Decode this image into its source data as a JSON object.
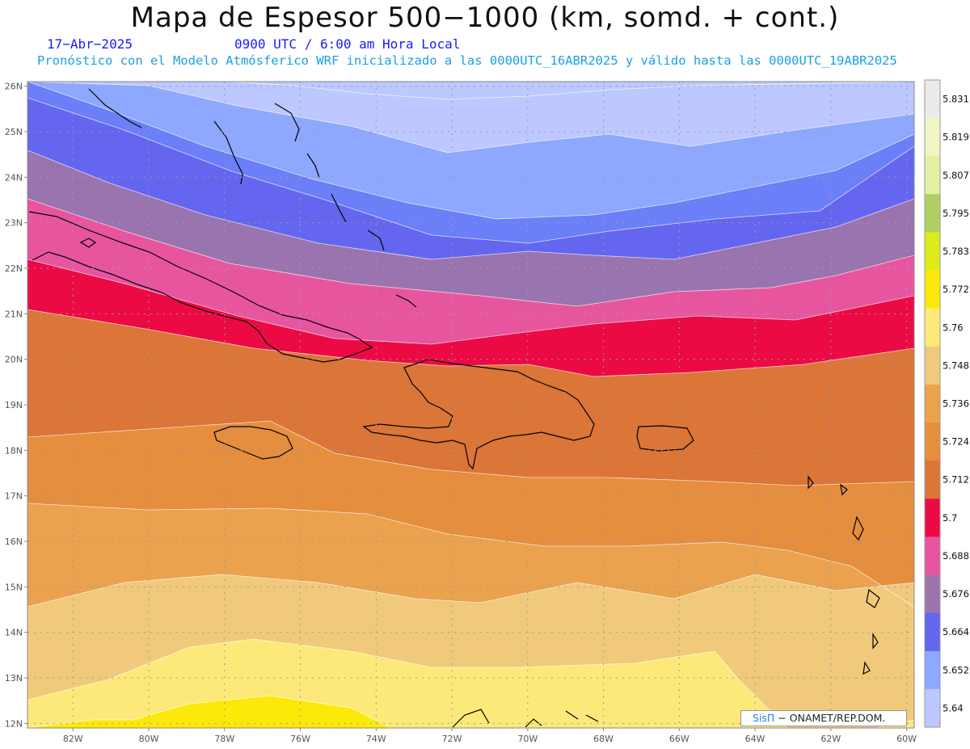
{
  "header": {
    "title": "Mapa de Espesor 500−1000 (km, somd. + cont.)",
    "date": "17−Abr−2025",
    "time": "0900 UTC / 6:00 am Hora Local",
    "forecast": "Pronóstico con el Modelo Atmósferico WRF inicializado a las 0000UTC_16ABR2025 y válido hasta las  0000UTC_19ABR2025"
  },
  "map": {
    "lon_labels": [
      "82W",
      "80W",
      "78W",
      "76W",
      "74W",
      "72W",
      "70W",
      "68W",
      "66W",
      "64W",
      "62W",
      "60W"
    ],
    "lat_labels": [
      "26N",
      "25N",
      "24N",
      "23N",
      "22N",
      "21N",
      "20N",
      "19N",
      "18N",
      "17N",
      "16N",
      "15N",
      "14N",
      "13N",
      "12N"
    ],
    "lon_range": [
      -83.2,
      -59.8
    ],
    "lat_range": [
      11.9,
      26.1
    ],
    "band_colors": [
      "#bcc8ff",
      "#8fa8ff",
      "#6a7ff8",
      "#6466f0",
      "#9a74ae",
      "#e8559f",
      "#ec0a45",
      "#db7538",
      "#e48e3e",
      "#eaa24e",
      "#f0c97a",
      "#fde979",
      "#fde909",
      "#e6e914"
    ]
  },
  "colorbar": {
    "labels": [
      "5.831",
      "5.819",
      "5.807",
      "5.795",
      "5.783",
      "5.772",
      "5.76",
      "5.748",
      "5.736",
      "5.724",
      "5.712",
      "5.7",
      "5.688",
      "5.676",
      "5.664",
      "5.652",
      "5.64"
    ],
    "colors": [
      "#ebebeb",
      "#f2f5c6",
      "#e2f0a0",
      "#b0cf62",
      "#dceb1a",
      "#fde909",
      "#fde979",
      "#f0c97a",
      "#eaa24e",
      "#e48e3e",
      "#db7538",
      "#ec0a45",
      "#e8559f",
      "#9a74ae",
      "#6466f0",
      "#8fa8ff",
      "#bcc8ff"
    ]
  },
  "credit": {
    "brand": "SisΠ",
    "text": " − ONAMET/REP.DOM."
  }
}
